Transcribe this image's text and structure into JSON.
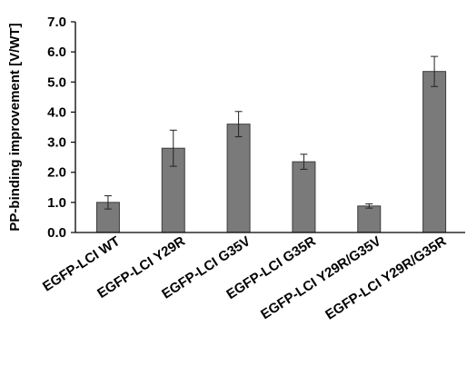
{
  "chart_data": {
    "type": "bar",
    "title": "",
    "xlabel": "",
    "ylabel": "PP-binding improvement [V/WT]",
    "ylim": [
      0,
      7
    ],
    "yticks": [
      "0.0",
      "1.0",
      "2.0",
      "3.0",
      "4.0",
      "5.0",
      "6.0",
      "7.0"
    ],
    "grid": false,
    "legend": "none",
    "categories": [
      "EGFP-LCI WT",
      "EGFP-LCI Y29R",
      "EGFP-LCI G35V",
      "EGFP-LCI G35R",
      "EGFP-LCI Y29R/G35V",
      "EGFP-LCI Y29R/G35R"
    ],
    "values": [
      1.0,
      2.8,
      3.6,
      2.35,
      0.88,
      5.35
    ],
    "errors": [
      0.22,
      0.6,
      0.42,
      0.25,
      0.07,
      0.5
    ],
    "colors": {
      "bar": "#7a7a7a",
      "bar_edge": "#3c3c3c",
      "axis": "#000000"
    }
  }
}
